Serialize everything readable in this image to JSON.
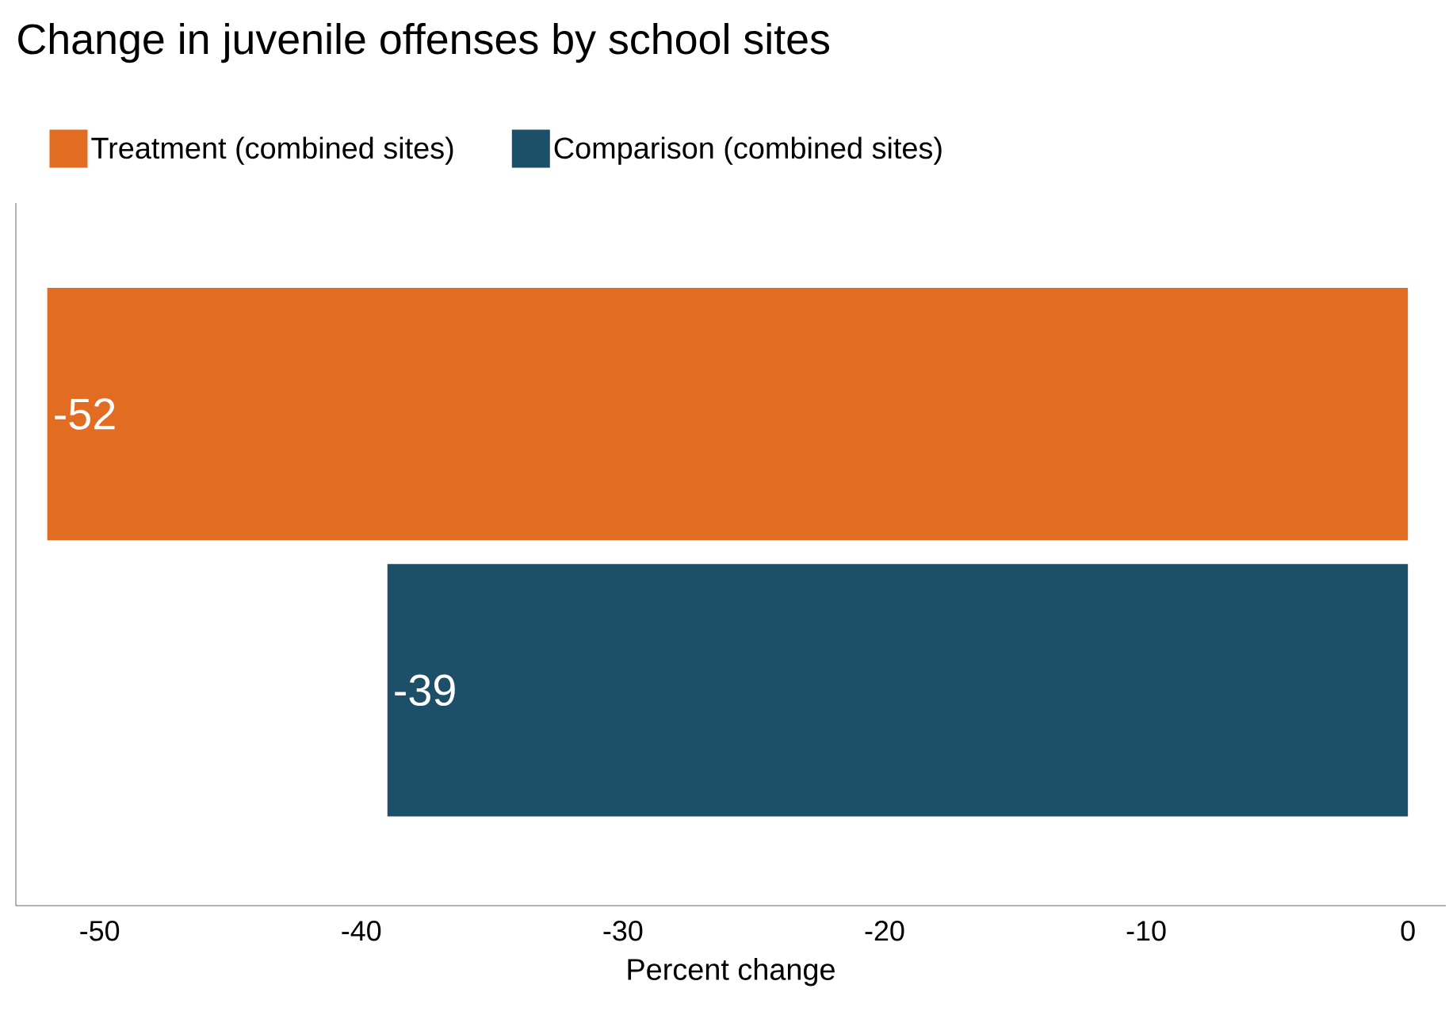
{
  "chart_data": {
    "type": "bar",
    "orientation": "horizontal",
    "title": "Change in juvenile offenses by school sites",
    "categories": [
      null,
      null
    ],
    "series": [
      {
        "name": "Treatment (combined sites)",
        "color": "#e26d22",
        "values": [
          -52,
          null
        ]
      },
      {
        "name": "Comparison (combined sites)",
        "color": "#1d4f68",
        "values": [
          null,
          -39
        ]
      }
    ],
    "xlim": [
      -53.2,
      1.45
    ],
    "xticks": [
      -50,
      -40,
      -30,
      -20,
      -10,
      0
    ],
    "xlabel": "Percent change",
    "data_labels": true,
    "legend": "top left"
  }
}
